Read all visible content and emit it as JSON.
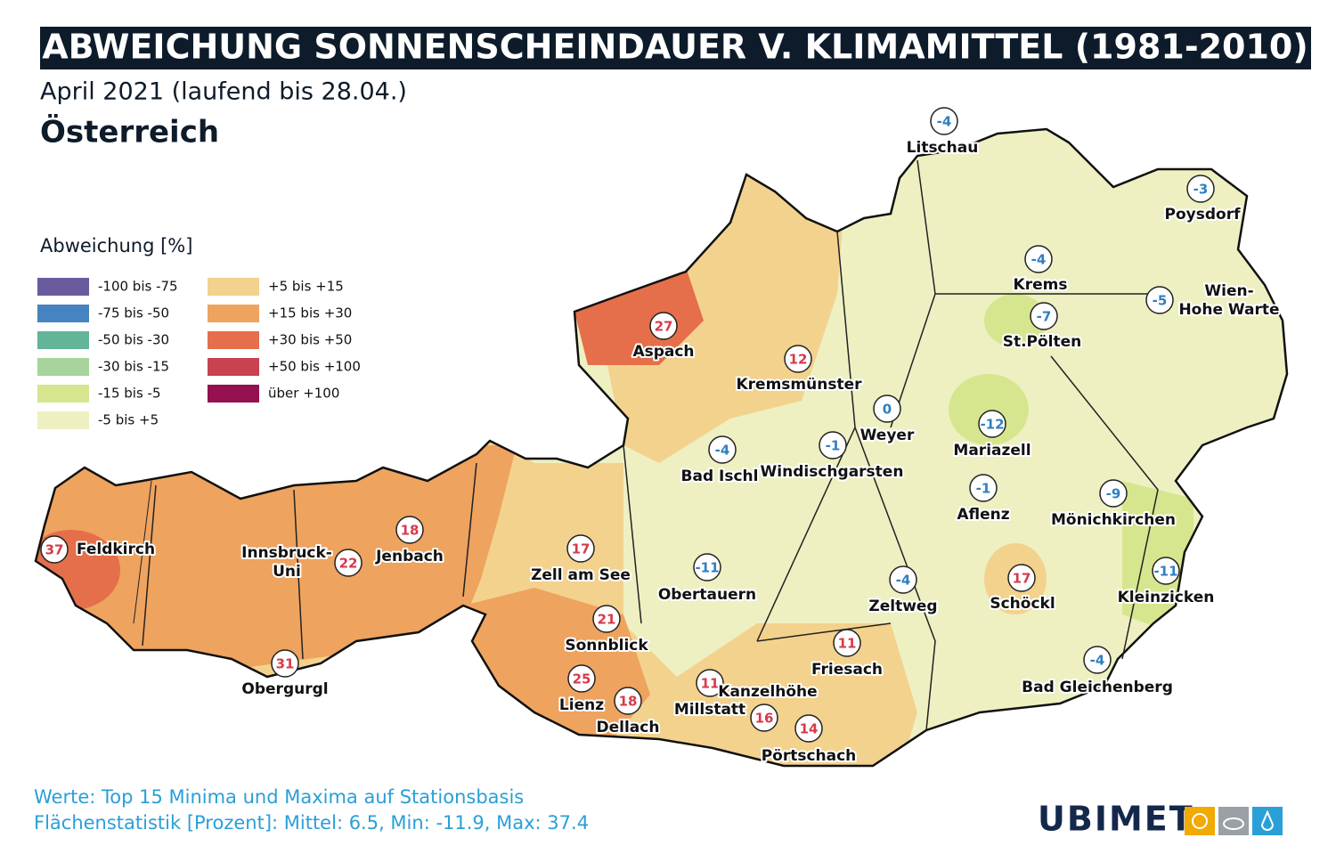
{
  "header": {
    "title": "ABWEICHUNG SONNENSCHEINDAUER V. KLIMAMITTEL (1981-2010)",
    "subtitle": "April 2021 (laufend bis 28.04.)",
    "region": "Österreich"
  },
  "legend": {
    "title": "Abweichung [%]",
    "items": [
      {
        "label": "-100 bis -75",
        "color": "#6a5a9e"
      },
      {
        "label": "-75 bis -50",
        "color": "#4584c1"
      },
      {
        "label": "-50 bis -30",
        "color": "#62b596"
      },
      {
        "label": "-30 bis -15",
        "color": "#a6d49c"
      },
      {
        "label": "-15 bis -5",
        "color": "#d6e68e"
      },
      {
        "label": "-5 bis +5",
        "color": "#eef0c2"
      },
      {
        "label": "+5 bis +15",
        "color": "#f3d28e"
      },
      {
        "label": "+15 bis +30",
        "color": "#eea35f"
      },
      {
        "label": "+30 bis +50",
        "color": "#e56f4a"
      },
      {
        "label": "+50 bis +100",
        "color": "#c8424f"
      },
      {
        "label": "über +100",
        "color": "#951150"
      }
    ]
  },
  "stations": [
    {
      "name": [
        "Litschau"
      ],
      "value": -4
    },
    {
      "name": [
        "Poysdorf"
      ],
      "value": -3
    },
    {
      "name": [
        "Krems"
      ],
      "value": -4
    },
    {
      "name": [
        "Wien-",
        "Hohe Warte"
      ],
      "value": -5
    },
    {
      "name": [
        "St.Pölten"
      ],
      "value": -7
    },
    {
      "name": [
        "Aspach"
      ],
      "value": 27
    },
    {
      "name": [
        "Kremsmünster"
      ],
      "value": 12
    },
    {
      "name": [
        "Weyer"
      ],
      "value": 0
    },
    {
      "name": [
        "Mariazell"
      ],
      "value": -12
    },
    {
      "name": [
        "Bad Ischl"
      ],
      "value": -4
    },
    {
      "name": [
        "Windischgarsten"
      ],
      "value": -1
    },
    {
      "name": [
        "Aflenz"
      ],
      "value": -1
    },
    {
      "name": [
        "Mönichkirchen"
      ],
      "value": -9
    },
    {
      "name": [
        "Feldkirch"
      ],
      "value": 37
    },
    {
      "name": [
        "Innsbruck-",
        "Uni"
      ],
      "value": 22
    },
    {
      "name": [
        "Jenbach"
      ],
      "value": 18
    },
    {
      "name": [
        "Zell am See"
      ],
      "value": 17
    },
    {
      "name": [
        "Obertauern"
      ],
      "value": -11
    },
    {
      "name": [
        "Zeltweg"
      ],
      "value": -4
    },
    {
      "name": [
        "Schöckl"
      ],
      "value": 17
    },
    {
      "name": [
        "Kleinzicken"
      ],
      "value": -11
    },
    {
      "name": [
        "Sonnblick"
      ],
      "value": 21
    },
    {
      "name": [
        "Friesach"
      ],
      "value": 11
    },
    {
      "name": [
        "Obergurgl"
      ],
      "value": 31
    },
    {
      "name": [
        "Bad Gleichenberg"
      ],
      "value": -4
    },
    {
      "name": [
        "Lienz"
      ],
      "value": 25
    },
    {
      "name": [
        "Dellach"
      ],
      "value": 18
    },
    {
      "name": [
        "Millstatt"
      ],
      "value": 11
    },
    {
      "name": [
        "Kanzelhöhe"
      ],
      "value": 16
    },
    {
      "name": [
        "Pörtschach"
      ],
      "value": 14
    }
  ],
  "footer": {
    "lines": [
      "Werte: Top 15 Minima und Maxima auf Stationsbasis",
      "Flächenstatistik [Prozent]: Mittel: 6.5, Min: -11.9, Max: 37.4"
    ]
  },
  "logo": "UBIMET"
}
